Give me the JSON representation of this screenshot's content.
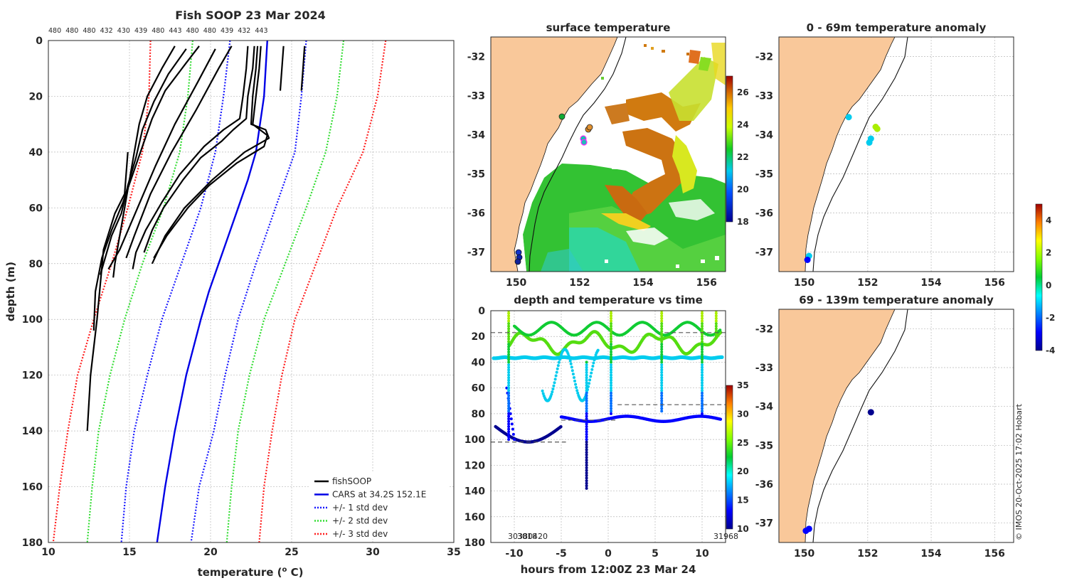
{
  "chart_data": [
    {
      "type": "line",
      "title": "Fish SOOP 23 Mar 2024",
      "xlabel": "temperature (o C)",
      "ylabel": "depth (m)",
      "xlim": [
        10,
        35
      ],
      "ylim": [
        180,
        0
      ],
      "xticks": [
        "10",
        "15",
        "20",
        "25",
        "30",
        "35"
      ],
      "yticks": [
        "0",
        "20",
        "40",
        "60",
        "80",
        "100",
        "120",
        "140",
        "160",
        "180"
      ],
      "top_labels": [
        "480",
        "480",
        "480",
        "432",
        "430",
        "439",
        "480",
        "443",
        "480",
        "480",
        "439",
        "432",
        "443"
      ],
      "legend": [
        "fishSOOP",
        "CARS at 34.2S 152.1E",
        "+/- 1 std dev",
        "+/- 2 std dev",
        "+/- 3 std dev"
      ],
      "legend_position": "bottom-right",
      "colors": {
        "fishsoop": "#000000",
        "cars": "#0000e6",
        "std1": "#1a1aff",
        "std2": "#33dd33",
        "std3": "#ff2020"
      },
      "cars_mean": {
        "depth": [
          0,
          20,
          40,
          50,
          60,
          70,
          80,
          90,
          100,
          120,
          140,
          160,
          180
        ],
        "temp": [
          23.5,
          23.3,
          22.8,
          22.3,
          21.7,
          21.1,
          20.5,
          19.9,
          19.4,
          18.5,
          17.8,
          17.2,
          16.7
        ]
      },
      "std1_low": {
        "depth": [
          0,
          20,
          40,
          60,
          80,
          100,
          120,
          140,
          160,
          180
        ],
        "temp": [
          21.2,
          20.8,
          20.3,
          19.4,
          18.2,
          17.0,
          16.1,
          15.3,
          14.8,
          14.5
        ]
      },
      "std1_high": {
        "depth": [
          0,
          20,
          40,
          60,
          80,
          100,
          120,
          140,
          160,
          180
        ],
        "temp": [
          25.9,
          25.6,
          25.2,
          24.0,
          22.8,
          21.7,
          20.9,
          20.2,
          19.3,
          18.8
        ]
      },
      "std2_low": {
        "depth": [
          0,
          20,
          40,
          60,
          80,
          100,
          120,
          140,
          160,
          180
        ],
        "temp": [
          18.9,
          18.6,
          18.1,
          17.1,
          15.8,
          14.7,
          13.8,
          13.1,
          12.7,
          12.4
        ]
      },
      "std2_high": {
        "depth": [
          0,
          20,
          40,
          60,
          80,
          100,
          120,
          140,
          160,
          180
        ],
        "temp": [
          28.2,
          27.8,
          27.1,
          25.9,
          24.6,
          23.3,
          22.4,
          21.7,
          21.3,
          21.0
        ]
      },
      "std3_low": {
        "depth": [
          0,
          20,
          40,
          60,
          80,
          100,
          120,
          140,
          160,
          180
        ],
        "temp": [
          16.3,
          16.2,
          15.8,
          14.9,
          13.9,
          12.8,
          11.8,
          11.2,
          10.7,
          10.3
        ]
      },
      "std3_high": {
        "depth": [
          0,
          20,
          40,
          60,
          80,
          100,
          120,
          140,
          160,
          180
        ],
        "temp": [
          30.8,
          30.3,
          29.4,
          27.8,
          26.5,
          25.2,
          24.4,
          23.8,
          23.3,
          23.0
        ]
      },
      "fishsoop_profiles": [
        {
          "depth": [
            2,
            10,
            20,
            30,
            40,
            50,
            60,
            70,
            80,
            85
          ],
          "temp": [
            17.8,
            17.0,
            16.1,
            15.6,
            15.3,
            15.0,
            14.7,
            14.4,
            14.1,
            14.0
          ]
        },
        {
          "depth": [
            3,
            12,
            22,
            32,
            42,
            52,
            62,
            70,
            78,
            84
          ],
          "temp": [
            18.5,
            17.4,
            16.5,
            15.8,
            15.4,
            14.9,
            14.5,
            13.9,
            13.5,
            13.2
          ]
        },
        {
          "depth": [
            2,
            8,
            18,
            28,
            38,
            48,
            58,
            68,
            78,
            90,
            104
          ],
          "temp": [
            19.3,
            18.5,
            17.2,
            16.4,
            15.8,
            15.2,
            14.6,
            13.9,
            13.3,
            12.9,
            12.8
          ]
        },
        {
          "depth": [
            3,
            15,
            30,
            45,
            60,
            75,
            82
          ],
          "temp": [
            20.3,
            19.2,
            17.8,
            16.6,
            15.5,
            14.4,
            13.7
          ]
        },
        {
          "depth": [
            2,
            10,
            25,
            40,
            55,
            70,
            78
          ],
          "temp": [
            21.3,
            20.5,
            19.1,
            17.6,
            16.3,
            15.3,
            14.8
          ]
        },
        {
          "depth": [
            2,
            10,
            20,
            28,
            32,
            38,
            48,
            58,
            68,
            76,
            82
          ],
          "temp": [
            22.3,
            22.2,
            22.0,
            21.8,
            20.8,
            19.6,
            18.1,
            17.0,
            16.0,
            15.4,
            15.2
          ]
        },
        {
          "depth": [
            2,
            10,
            20,
            28,
            32,
            36,
            42,
            50,
            60,
            68,
            76
          ],
          "temp": [
            22.7,
            22.6,
            22.3,
            22.2,
            21.4,
            20.7,
            19.4,
            18.3,
            17.1,
            16.4,
            15.9
          ]
        },
        {
          "depth": [
            2,
            10,
            20,
            30,
            32,
            35,
            40,
            50,
            60,
            70,
            80
          ],
          "temp": [
            22.9,
            22.8,
            22.6,
            22.5,
            23.4,
            23.6,
            22.1,
            20.1,
            18.4,
            17.2,
            16.4
          ]
        },
        {
          "depth": [
            2,
            10,
            20,
            30,
            34,
            38,
            44,
            52,
            60,
            70,
            78
          ],
          "temp": [
            23.1,
            23.0,
            22.8,
            22.6,
            23.5,
            23.3,
            21.6,
            19.9,
            18.6,
            17.3,
            16.5
          ]
        },
        {
          "depth": [
            2,
            10,
            18
          ],
          "temp": [
            24.5,
            24.4,
            24.3
          ]
        },
        {
          "depth": [
            2,
            10,
            18
          ],
          "temp": [
            25.8,
            25.7,
            25.6
          ]
        },
        {
          "depth": [
            40,
            55,
            62,
            75,
            100,
            120,
            140
          ],
          "temp": [
            14.9,
            14.7,
            14.1,
            13.4,
            13.0,
            12.6,
            12.4
          ]
        }
      ]
    },
    {
      "type": "heatmap",
      "title": "surface temperature",
      "x_ticks": [
        "150",
        "152",
        "154",
        "156"
      ],
      "y_ticks": [
        "-32",
        "-33",
        "-34",
        "-35",
        "-36",
        "-37"
      ],
      "xlim": [
        149.2,
        156.6
      ],
      "ylim": [
        -37.5,
        -31.5
      ],
      "colorbar_ticks": [
        "18",
        "20",
        "22",
        "24",
        "26"
      ],
      "colorbar_range": [
        18,
        27
      ],
      "land_color": "#f9c89a"
    },
    {
      "type": "scatter",
      "title": "depth and temperature vs time",
      "xlabel": "hours from 12:00Z 23 Mar 24",
      "xlim": [
        -12.5,
        12.5
      ],
      "ylim": [
        180,
        0
      ],
      "x_ticks": [
        "-10",
        "-5",
        "0",
        "5",
        "10"
      ],
      "y_ticks": [
        "0",
        "20",
        "40",
        "60",
        "80",
        "100",
        "120",
        "140",
        "160",
        "180"
      ],
      "colorbar_ticks": [
        "10",
        "15",
        "20",
        "25",
        "30",
        "35"
      ],
      "colorbar_range": [
        10,
        35
      ],
      "bottom_labels": [
        "3038",
        "3018",
        "30420",
        "31968"
      ],
      "dashed_levels": [
        {
          "x": [
            -12.5,
            -9.5
          ],
          "depth": 17
        },
        {
          "x": [
            -12.5,
            -4.5
          ],
          "depth": 102
        },
        {
          "x": [
            -5,
            1
          ],
          "depth": 85
        },
        {
          "x": [
            1,
            12.5
          ],
          "depth": 73
        },
        {
          "x": [
            6,
            12.5
          ],
          "depth": 17
        }
      ]
    },
    {
      "type": "scatter",
      "title": "0 - 69m temperature anomaly",
      "x_ticks": [
        "150",
        "152",
        "154",
        "156"
      ],
      "y_ticks": [
        "-32",
        "-33",
        "-34",
        "-35",
        "-36",
        "-37"
      ],
      "xlim": [
        149.2,
        156.6
      ],
      "ylim": [
        -37.5,
        -31.5
      ],
      "points": [
        {
          "lon": 151.4,
          "lat": -33.55,
          "anomaly": -1.2
        },
        {
          "lon": 152.1,
          "lat": -34.1,
          "anomaly": -0.6
        },
        {
          "lon": 152.05,
          "lat": -34.2,
          "anomaly": -1.4
        },
        {
          "lon": 152.3,
          "lat": -33.85,
          "anomaly": 2.0
        },
        {
          "lon": 152.25,
          "lat": -33.8,
          "anomaly": 2.2
        },
        {
          "lon": 150.15,
          "lat": -37.1,
          "anomaly": -1.0
        },
        {
          "lon": 150.1,
          "lat": -37.2,
          "anomaly": -2.0
        }
      ]
    },
    {
      "type": "scatter",
      "title": "69 - 139m temperature anomaly",
      "x_ticks": [
        "150",
        "152",
        "154",
        "156"
      ],
      "y_ticks": [
        "-32",
        "-33",
        "-34",
        "-35",
        "-36",
        "-37"
      ],
      "xlim": [
        149.2,
        156.6
      ],
      "ylim": [
        -37.5,
        -31.5
      ],
      "colorbar_ticks": [
        "4",
        "2",
        "0",
        "-2",
        "-4"
      ],
      "colorbar_range": [
        -4,
        5
      ],
      "points": [
        {
          "lon": 152.1,
          "lat": -34.15,
          "anomaly": -4.0
        },
        {
          "lon": 150.15,
          "lat": -37.15,
          "anomaly": -2.5
        },
        {
          "lon": 150.05,
          "lat": -37.2,
          "anomaly": -3.0
        }
      ]
    }
  ],
  "footer": {
    "credit": "© IMOS 20-Oct-2025 17:02 Hobart"
  }
}
